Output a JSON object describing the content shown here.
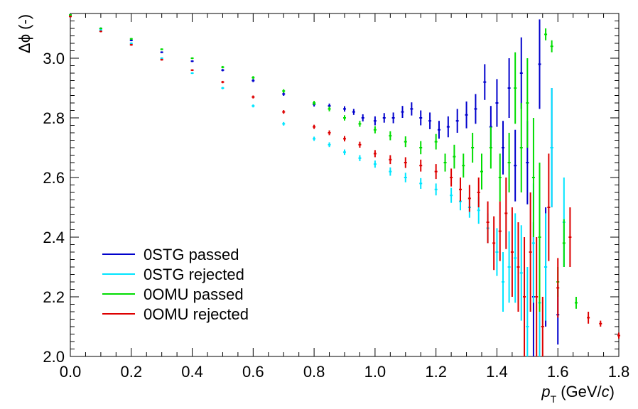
{
  "chart_data": {
    "type": "scatter",
    "title": "",
    "xlabel": {
      "main": "p",
      "sub": "T",
      "unit_pre": "(GeV/",
      "unit_var": "c",
      "unit_post": ")"
    },
    "ylabel": "Δϕ (-)",
    "xlim": [
      0.0,
      1.8
    ],
    "ylim": [
      2.0,
      3.15
    ],
    "x_ticks": [
      "0.0",
      "0.2",
      "0.4",
      "0.6",
      "0.8",
      "1.0",
      "1.2",
      "1.4",
      "1.6",
      "1.8"
    ],
    "y_ticks": [
      "2.0",
      "2.2",
      "2.4",
      "2.6",
      "2.8",
      "3.0"
    ],
    "legend_position": "bottom-left",
    "series": [
      {
        "name": "0STG passed",
        "color": "#0000cc",
        "points": [
          [
            0.0,
            3.145,
            0.003
          ],
          [
            0.1,
            3.1,
            0.003
          ],
          [
            0.2,
            3.06,
            0.003
          ],
          [
            0.3,
            3.02,
            0.003
          ],
          [
            0.4,
            2.99,
            0.003
          ],
          [
            0.5,
            2.96,
            0.004
          ],
          [
            0.6,
            2.925,
            0.005
          ],
          [
            0.7,
            2.88,
            0.006
          ],
          [
            0.8,
            2.845,
            0.007
          ],
          [
            0.85,
            2.84,
            0.008
          ],
          [
            0.9,
            2.83,
            0.009
          ],
          [
            0.93,
            2.82,
            0.01
          ],
          [
            0.96,
            2.8,
            0.012
          ],
          [
            1.0,
            2.79,
            0.015
          ],
          [
            1.03,
            2.8,
            0.016
          ],
          [
            1.06,
            2.8,
            0.018
          ],
          [
            1.09,
            2.82,
            0.02
          ],
          [
            1.12,
            2.83,
            0.022
          ],
          [
            1.15,
            2.8,
            0.025
          ],
          [
            1.18,
            2.79,
            0.028
          ],
          [
            1.21,
            2.76,
            0.03
          ],
          [
            1.24,
            2.77,
            0.035
          ],
          [
            1.27,
            2.79,
            0.04
          ],
          [
            1.3,
            2.81,
            0.045
          ],
          [
            1.33,
            2.83,
            0.05
          ],
          [
            1.36,
            2.92,
            0.06
          ],
          [
            1.38,
            2.77,
            0.07
          ],
          [
            1.4,
            2.85,
            0.08
          ],
          [
            1.42,
            2.7,
            0.09
          ],
          [
            1.44,
            2.9,
            0.1
          ],
          [
            1.46,
            2.64,
            0.12
          ],
          [
            1.48,
            2.95,
            0.12
          ],
          [
            1.5,
            2.65,
            0.14
          ],
          [
            1.52,
            2.2,
            0.25
          ],
          [
            1.54,
            2.98,
            0.15
          ],
          [
            1.56,
            2.3,
            0.2
          ],
          [
            1.58,
            2.7,
            0.2
          ],
          [
            1.6,
            2.14,
            0.1
          ]
        ]
      },
      {
        "name": "0STG rejected",
        "color": "#00e5ff",
        "points": [
          [
            0.0,
            3.14,
            0.003
          ],
          [
            0.1,
            3.095,
            0.003
          ],
          [
            0.2,
            3.05,
            0.003
          ],
          [
            0.3,
            3.0,
            0.003
          ],
          [
            0.4,
            2.95,
            0.003
          ],
          [
            0.5,
            2.9,
            0.004
          ],
          [
            0.6,
            2.84,
            0.005
          ],
          [
            0.7,
            2.78,
            0.006
          ],
          [
            0.8,
            2.73,
            0.007
          ],
          [
            0.85,
            2.71,
            0.008
          ],
          [
            0.9,
            2.685,
            0.009
          ],
          [
            0.95,
            2.665,
            0.01
          ],
          [
            1.0,
            2.645,
            0.012
          ],
          [
            1.05,
            2.62,
            0.014
          ],
          [
            1.1,
            2.6,
            0.016
          ],
          [
            1.15,
            2.58,
            0.018
          ],
          [
            1.2,
            2.56,
            0.02
          ],
          [
            1.25,
            2.54,
            0.025
          ],
          [
            1.28,
            2.52,
            0.03
          ],
          [
            1.31,
            2.5,
            0.035
          ],
          [
            1.34,
            2.49,
            0.045
          ],
          [
            1.37,
            2.43,
            0.05
          ],
          [
            1.4,
            2.35,
            0.08
          ],
          [
            1.42,
            2.25,
            0.1
          ],
          [
            1.44,
            2.3,
            0.12
          ],
          [
            1.46,
            2.33,
            0.15
          ],
          [
            1.48,
            2.28,
            0.16
          ],
          [
            1.5,
            2.1,
            0.2
          ],
          [
            1.52,
            2.38,
            0.2
          ],
          [
            1.54,
            2.18,
            0.2
          ],
          [
            1.56,
            2.3,
            0.18
          ],
          [
            1.58,
            2.7,
            0.2
          ],
          [
            1.62,
            2.45,
            0.15
          ]
        ]
      },
      {
        "name": "0OMU passed",
        "color": "#00dd00",
        "points": [
          [
            0.0,
            3.145,
            0.003
          ],
          [
            0.1,
            3.1,
            0.003
          ],
          [
            0.2,
            3.065,
            0.003
          ],
          [
            0.3,
            3.03,
            0.003
          ],
          [
            0.4,
            3.0,
            0.003
          ],
          [
            0.5,
            2.97,
            0.004
          ],
          [
            0.6,
            2.935,
            0.005
          ],
          [
            0.7,
            2.89,
            0.006
          ],
          [
            0.8,
            2.85,
            0.007
          ],
          [
            0.85,
            2.83,
            0.008
          ],
          [
            0.9,
            2.8,
            0.009
          ],
          [
            0.95,
            2.78,
            0.01
          ],
          [
            1.0,
            2.76,
            0.012
          ],
          [
            1.05,
            2.74,
            0.015
          ],
          [
            1.1,
            2.72,
            0.018
          ],
          [
            1.15,
            2.7,
            0.022
          ],
          [
            1.2,
            2.72,
            0.026
          ],
          [
            1.23,
            2.65,
            0.03
          ],
          [
            1.26,
            2.67,
            0.04
          ],
          [
            1.29,
            2.64,
            0.04
          ],
          [
            1.32,
            2.7,
            0.05
          ],
          [
            1.35,
            2.62,
            0.06
          ],
          [
            1.38,
            2.7,
            0.07
          ],
          [
            1.41,
            2.6,
            0.08
          ],
          [
            1.44,
            2.65,
            0.1
          ],
          [
            1.46,
            2.9,
            0.12
          ],
          [
            1.48,
            2.7,
            0.15
          ],
          [
            1.5,
            2.85,
            0.15
          ],
          [
            1.52,
            2.6,
            0.2
          ],
          [
            1.54,
            2.4,
            0.25
          ],
          [
            1.56,
            3.08,
            0.02
          ],
          [
            1.58,
            3.04,
            0.02
          ],
          [
            1.6,
            2.25,
            0.05
          ],
          [
            1.62,
            2.38,
            0.08
          ],
          [
            1.66,
            2.18,
            0.02
          ]
        ]
      },
      {
        "name": "0OMU rejected",
        "color": "#dd0000",
        "points": [
          [
            0.0,
            3.14,
            0.003
          ],
          [
            0.1,
            3.09,
            0.003
          ],
          [
            0.2,
            3.045,
            0.003
          ],
          [
            0.3,
            2.995,
            0.003
          ],
          [
            0.4,
            2.96,
            0.003
          ],
          [
            0.5,
            2.92,
            0.004
          ],
          [
            0.6,
            2.87,
            0.005
          ],
          [
            0.7,
            2.82,
            0.006
          ],
          [
            0.8,
            2.77,
            0.007
          ],
          [
            0.85,
            2.75,
            0.008
          ],
          [
            0.9,
            2.73,
            0.009
          ],
          [
            0.95,
            2.71,
            0.01
          ],
          [
            1.0,
            2.68,
            0.012
          ],
          [
            1.05,
            2.66,
            0.015
          ],
          [
            1.1,
            2.65,
            0.018
          ],
          [
            1.15,
            2.64,
            0.02
          ],
          [
            1.2,
            2.62,
            0.025
          ],
          [
            1.25,
            2.6,
            0.03
          ],
          [
            1.28,
            2.56,
            0.04
          ],
          [
            1.31,
            2.53,
            0.045
          ],
          [
            1.34,
            2.55,
            0.05
          ],
          [
            1.37,
            2.45,
            0.07
          ],
          [
            1.39,
            2.38,
            0.09
          ],
          [
            1.41,
            2.42,
            0.1
          ],
          [
            1.43,
            2.48,
            0.12
          ],
          [
            1.45,
            2.35,
            0.15
          ],
          [
            1.47,
            2.3,
            0.15
          ],
          [
            1.49,
            2.2,
            0.2
          ],
          [
            1.51,
            2.35,
            0.2
          ],
          [
            1.53,
            2.2,
            0.2
          ],
          [
            1.55,
            2.1,
            0.1
          ],
          [
            1.57,
            2.5,
            0.18
          ],
          [
            1.6,
            2.23,
            0.1
          ],
          [
            1.64,
            2.4,
            0.1
          ],
          [
            1.7,
            2.13,
            0.02
          ],
          [
            1.74,
            2.11,
            0.01
          ],
          [
            1.8,
            2.07,
            0.01
          ]
        ]
      }
    ]
  }
}
